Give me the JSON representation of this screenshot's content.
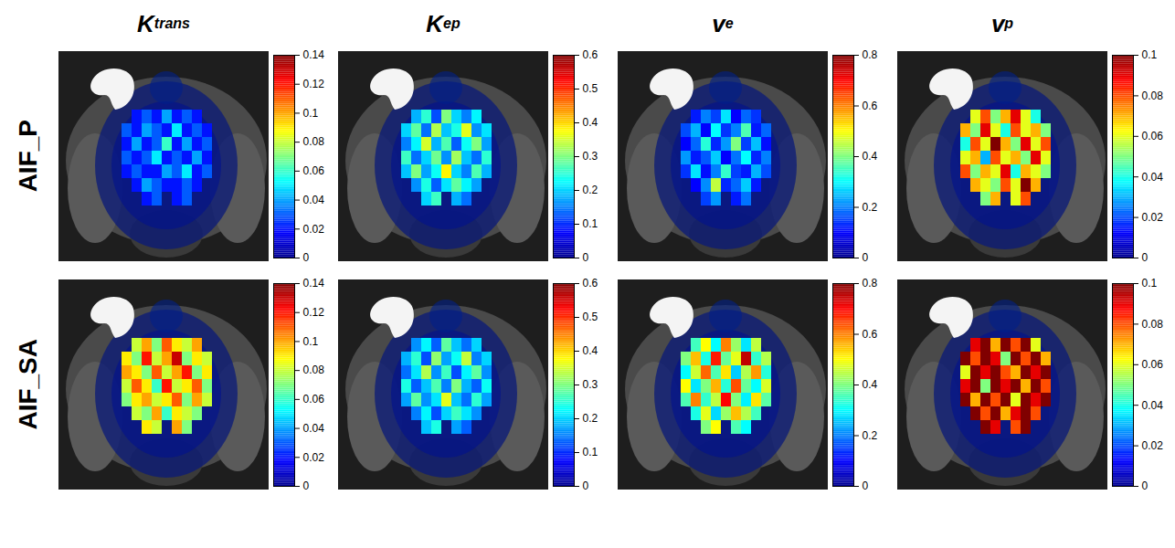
{
  "chart_data": {
    "type": "heatmap",
    "columns": [
      {
        "title": {
          "base": "K",
          "superscript": "trans"
        },
        "colorbar": {
          "range": [
            0,
            0.14
          ],
          "ticks": [
            0,
            0.02,
            0.04,
            0.06,
            0.08,
            0.1,
            0.12,
            0.14
          ]
        }
      },
      {
        "title": {
          "base": "K",
          "subscript": "ep"
        },
        "colorbar": {
          "range": [
            0,
            0.6
          ],
          "ticks": [
            0,
            0.1,
            0.2,
            0.3,
            0.4,
            0.5,
            0.6
          ]
        }
      },
      {
        "title": {
          "base": "v",
          "subscript": "e"
        },
        "colorbar": {
          "range": [
            0,
            0.8
          ],
          "ticks": [
            0,
            0.2,
            0.4,
            0.6,
            0.8
          ]
        }
      },
      {
        "title": {
          "base": "v",
          "subscript": "p"
        },
        "colorbar": {
          "range": [
            0,
            0.1
          ],
          "ticks": [
            0,
            0.02,
            0.04,
            0.06,
            0.08,
            0.1
          ]
        }
      }
    ],
    "rows": [
      {
        "label": "AIF_P",
        "cells": [
          [
            [
              null,
              0.02,
              0.03,
              0.02,
              0.04,
              0.02,
              0.03,
              0.02,
              null
            ],
            [
              0.03,
              0.02,
              0.04,
              0.03,
              0.02,
              0.05,
              0.02,
              0.03,
              0.02
            ],
            [
              0.02,
              0.04,
              0.02,
              0.03,
              0.06,
              0.02,
              0.04,
              0.02,
              0.03
            ],
            [
              0.03,
              0.02,
              0.03,
              0.05,
              0.02,
              0.03,
              0.02,
              0.04,
              0.02
            ],
            [
              0.02,
              0.03,
              0.02,
              0.02,
              0.04,
              0.03,
              0.05,
              0.02,
              0.03
            ],
            [
              null,
              0.02,
              0.04,
              0.03,
              0.02,
              0.02,
              0.03,
              0.02,
              null
            ],
            [
              null,
              null,
              0.02,
              0.03,
              null,
              0.02,
              0.03,
              null,
              null
            ]
          ],
          [
            [
              null,
              0.18,
              0.25,
              0.12,
              0.3,
              0.2,
              0.15,
              0.22,
              null
            ],
            [
              0.2,
              0.28,
              0.14,
              0.33,
              0.19,
              0.24,
              0.36,
              0.16,
              0.21
            ],
            [
              0.15,
              0.22,
              0.35,
              0.18,
              0.27,
              0.13,
              0.23,
              0.3,
              0.17
            ],
            [
              0.26,
              0.14,
              0.2,
              0.29,
              0.16,
              0.32,
              0.19,
              0.14,
              0.25
            ],
            [
              0.19,
              0.3,
              0.17,
              0.23,
              0.38,
              0.2,
              0.15,
              0.27,
              0.18
            ],
            [
              null,
              0.16,
              0.24,
              0.13,
              0.21,
              0.28,
              0.22,
              0.17,
              null
            ],
            [
              null,
              null,
              0.2,
              0.26,
              null,
              0.18,
              0.14,
              null,
              null
            ]
          ],
          [
            [
              null,
              0.12,
              0.2,
              0.15,
              0.28,
              0.1,
              0.18,
              0.14,
              null
            ],
            [
              0.16,
              0.24,
              0.1,
              0.3,
              0.14,
              0.2,
              0.36,
              0.12,
              0.18
            ],
            [
              0.1,
              0.18,
              0.33,
              0.13,
              0.22,
              0.4,
              0.15,
              0.25,
              0.11
            ],
            [
              0.22,
              0.12,
              0.17,
              0.26,
              0.1,
              0.19,
              0.3,
              0.13,
              0.2
            ],
            [
              0.14,
              0.28,
              0.11,
              0.2,
              0.34,
              0.15,
              0.12,
              0.24,
              0.16
            ],
            [
              null,
              0.1,
              0.21,
              0.45,
              0.13,
              0.18,
              0.26,
              0.12,
              null
            ],
            [
              null,
              null,
              0.15,
              0.22,
              null,
              0.12,
              0.19,
              null,
              null
            ]
          ],
          [
            [
              null,
              0.06,
              0.08,
              0.05,
              0.07,
              0.09,
              0.06,
              0.04,
              null
            ],
            [
              0.07,
              0.05,
              0.09,
              0.06,
              0.04,
              0.08,
              0.06,
              0.07,
              0.05
            ],
            [
              0.04,
              0.08,
              0.06,
              0.1,
              0.07,
              0.05,
              0.09,
              0.06,
              0.08
            ],
            [
              0.06,
              0.07,
              0.03,
              0.08,
              0.06,
              0.07,
              0.05,
              0.09,
              0.06
            ],
            [
              0.08,
              0.05,
              0.07,
              0.06,
              0.09,
              0.04,
              0.07,
              0.06,
              0.05
            ],
            [
              null,
              0.07,
              0.06,
              0.05,
              0.08,
              0.06,
              0.1,
              0.07,
              null
            ],
            [
              null,
              null,
              0.05,
              0.07,
              null,
              0.06,
              0.08,
              null,
              null
            ]
          ]
        ]
      },
      {
        "label": "AIF_SA",
        "cells": [
          [
            [
              null,
              0.08,
              0.1,
              0.07,
              0.11,
              0.09,
              0.08,
              0.1,
              null
            ],
            [
              0.09,
              0.07,
              0.12,
              0.08,
              0.1,
              0.13,
              0.07,
              0.09,
              0.08
            ],
            [
              0.1,
              0.09,
              0.07,
              0.11,
              0.08,
              0.1,
              0.12,
              0.07,
              0.09
            ],
            [
              0.08,
              0.11,
              0.09,
              0.06,
              0.12,
              0.08,
              0.09,
              0.11,
              0.07
            ],
            [
              0.07,
              0.09,
              0.1,
              0.08,
              0.09,
              0.11,
              0.07,
              0.1,
              0.08
            ],
            [
              null,
              0.08,
              0.07,
              0.1,
              0.06,
              0.09,
              0.08,
              0.07,
              null
            ],
            [
              null,
              null,
              0.09,
              0.08,
              null,
              0.1,
              0.07,
              null,
              null
            ]
          ],
          [
            [
              null,
              0.16,
              0.22,
              0.13,
              0.28,
              0.19,
              0.14,
              0.2,
              null
            ],
            [
              0.18,
              0.25,
              0.12,
              0.31,
              0.17,
              0.23,
              0.34,
              0.15,
              0.2
            ],
            [
              0.14,
              0.21,
              0.33,
              0.16,
              0.26,
              0.12,
              0.22,
              0.28,
              0.16
            ],
            [
              0.24,
              0.13,
              0.19,
              0.27,
              0.15,
              0.3,
              0.18,
              0.13,
              0.23
            ],
            [
              0.17,
              0.28,
              0.16,
              0.21,
              0.36,
              0.19,
              0.14,
              0.25,
              0.17
            ],
            [
              null,
              0.15,
              0.22,
              0.12,
              0.2,
              0.26,
              0.21,
              0.16,
              null
            ],
            [
              null,
              null,
              0.19,
              0.24,
              null,
              0.17,
              0.13,
              null,
              null
            ]
          ],
          [
            [
              null,
              0.35,
              0.5,
              0.3,
              0.6,
              0.42,
              0.28,
              0.45,
              null
            ],
            [
              0.4,
              0.55,
              0.32,
              0.68,
              0.38,
              0.48,
              0.75,
              0.34,
              0.44
            ],
            [
              0.3,
              0.46,
              0.62,
              0.36,
              0.52,
              0.26,
              0.44,
              0.58,
              0.33
            ],
            [
              0.5,
              0.28,
              0.4,
              0.56,
              0.33,
              0.64,
              0.38,
              0.3,
              0.47
            ],
            [
              0.36,
              0.6,
              0.34,
              0.45,
              0.7,
              0.4,
              0.29,
              0.52,
              0.37
            ],
            [
              null,
              0.32,
              0.48,
              0.27,
              0.42,
              0.55,
              0.44,
              0.35,
              null
            ],
            [
              null,
              null,
              0.4,
              0.5,
              null,
              0.36,
              0.3,
              null,
              null
            ]
          ],
          [
            [
              null,
              0.09,
              0.1,
              0.07,
              0.1,
              0.08,
              0.1,
              0.06,
              null
            ],
            [
              0.1,
              0.08,
              0.1,
              0.09,
              0.05,
              0.1,
              0.08,
              0.1,
              0.07
            ],
            [
              0.06,
              0.1,
              0.09,
              0.1,
              0.08,
              0.07,
              0.1,
              0.09,
              0.1
            ],
            [
              0.09,
              0.1,
              0.05,
              0.1,
              0.09,
              0.1,
              0.07,
              0.1,
              0.08
            ],
            [
              0.1,
              0.07,
              0.1,
              0.08,
              0.1,
              0.06,
              0.1,
              0.09,
              0.1
            ],
            [
              null,
              0.1,
              0.08,
              0.1,
              0.07,
              0.09,
              0.1,
              0.08,
              null
            ],
            [
              null,
              null,
              0.1,
              0.09,
              null,
              0.08,
              0.1,
              null,
              null
            ]
          ]
        ]
      }
    ]
  }
}
